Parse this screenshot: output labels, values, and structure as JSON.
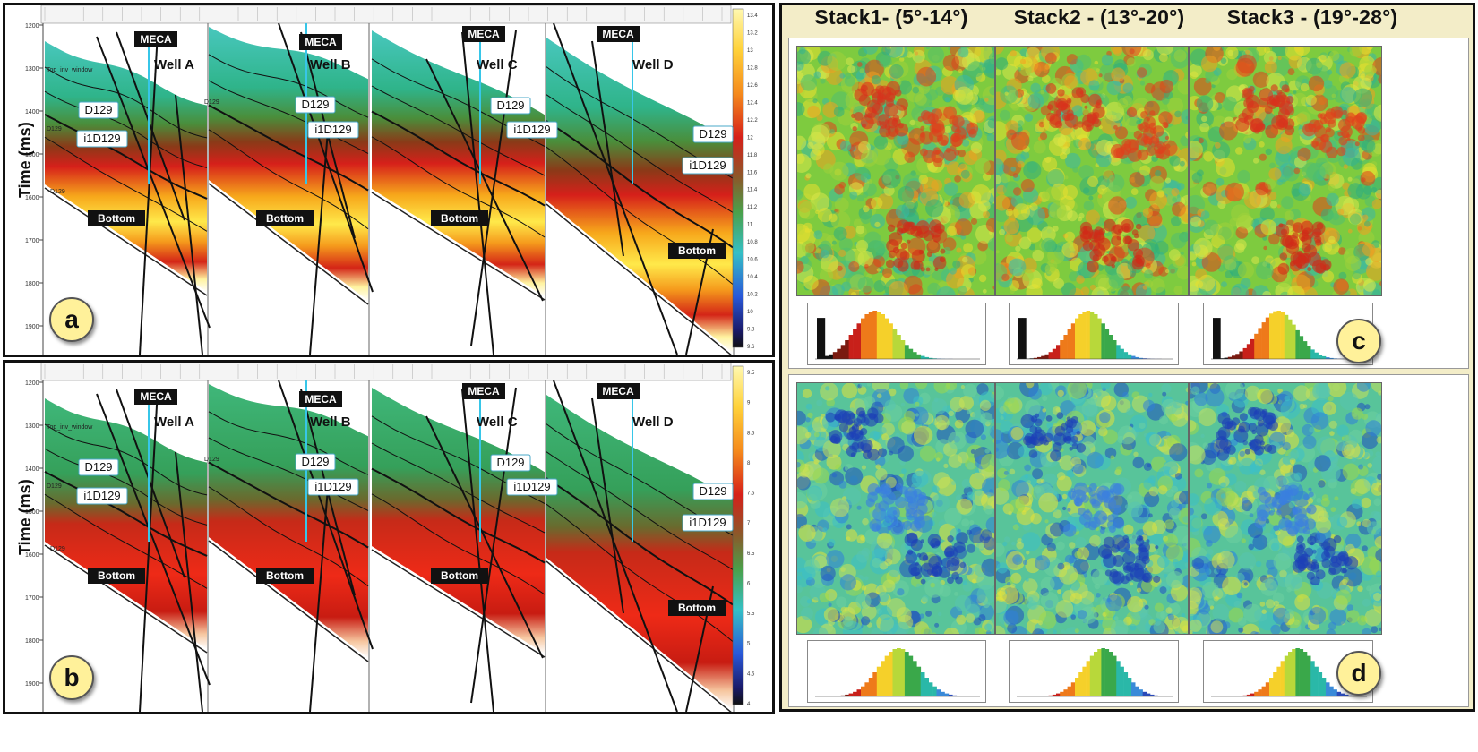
{
  "sections": [
    {
      "id": "a",
      "ylabel": "Time (ms)",
      "y_ticks": [
        "1200",
        "1300",
        "1400",
        "1500",
        "1600",
        "1700",
        "1800",
        "1900"
      ],
      "colorbar_ticks": [
        "13.4",
        "13.2",
        "13",
        "12.8",
        "12.6",
        "12.4",
        "12.2",
        "12",
        "11.8",
        "11.6",
        "11.4",
        "11.2",
        "11",
        "10.8",
        "10.6",
        "10.4",
        "10.2",
        "10",
        "9.8",
        "9.6"
      ],
      "labels": {
        "meca": "MECA",
        "bottom": "Bottom",
        "d129": "D129",
        "i1d129": "i1D129",
        "window": "Top_inv_window",
        "small_d129": "D129",
        "small_bottom": "D129"
      },
      "wells": [
        "Well A",
        "Well B",
        "Well C",
        "Well D"
      ],
      "palette": "red"
    },
    {
      "id": "b",
      "ylabel": "Time (ms)",
      "y_ticks": [
        "1200",
        "1300",
        "1400",
        "1500",
        "1600",
        "1700",
        "1800",
        "1900"
      ],
      "colorbar_ticks": [
        "9.5",
        "9",
        "8.5",
        "8",
        "7.5",
        "7",
        "6.5",
        "6",
        "5.5",
        "5",
        "4.5",
        "4"
      ],
      "labels": {
        "meca": "MECA",
        "bottom": "Bottom",
        "d129": "D129",
        "i1d129": "i1D129",
        "window": "Top_inv_window",
        "small_d129": "D129",
        "small_bottom": "D129"
      },
      "wells": [
        "Well A",
        "Well B",
        "Well C",
        "Well D"
      ],
      "palette": "green"
    }
  ],
  "stacks": [
    {
      "title": "Stack1- (5°-14°)"
    },
    {
      "title": "Stack2 - (13°-20°)"
    },
    {
      "title": "Stack3 - (19°-28°)"
    }
  ],
  "badges": {
    "a": "a",
    "b": "b",
    "c": "c",
    "d": "d"
  },
  "colors": {
    "frame": "#111111",
    "badge": "#fff19a",
    "title_bg": "#f2ecc4"
  }
}
